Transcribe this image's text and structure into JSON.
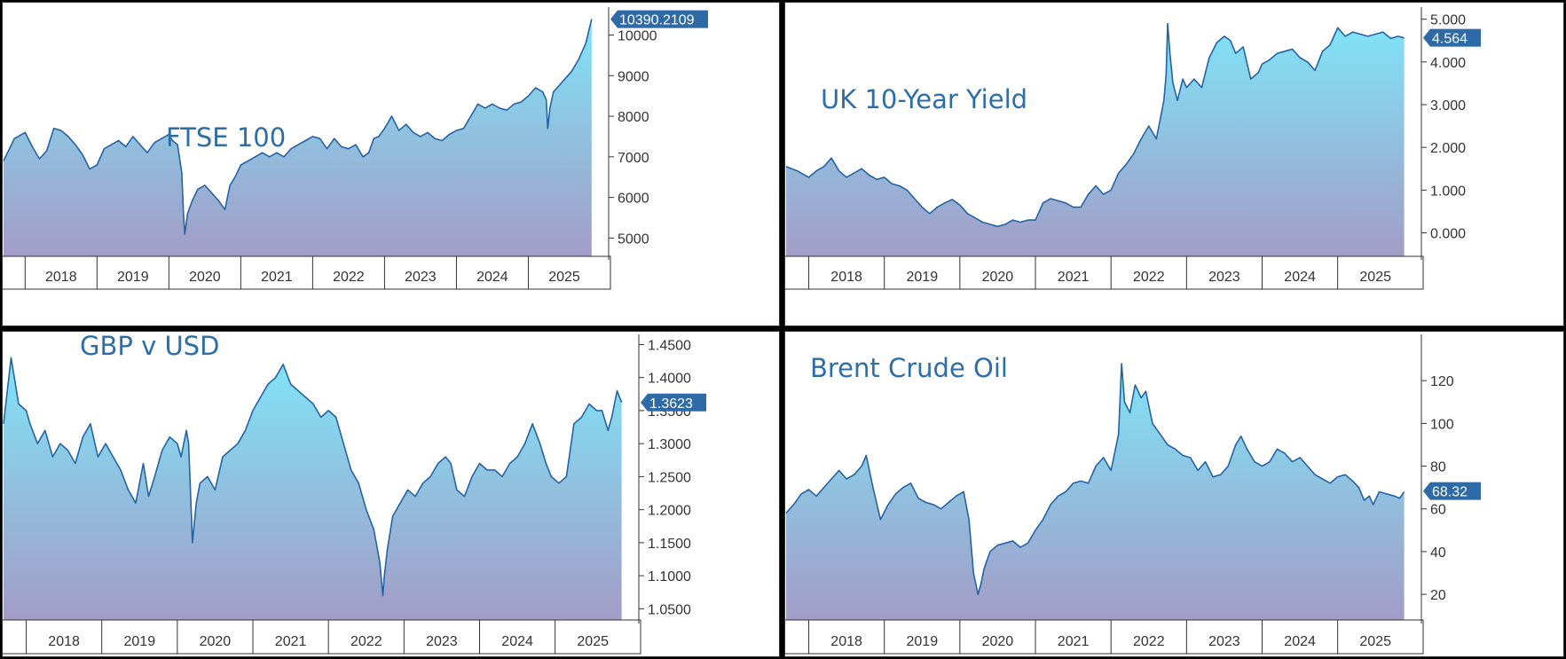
{
  "colors": {
    "line": "#2563a3",
    "fill_top": "#7fe4f7",
    "fill_bottom": "#a39cc7",
    "tag": "#2d6aa6",
    "axis": "#333333"
  },
  "chart_data": [
    {
      "type": "area",
      "title": "FTSE 100",
      "x_ticks": [
        "2018",
        "2019",
        "2020",
        "2021",
        "2022",
        "2023",
        "2024",
        "2025"
      ],
      "y_ticks": [
        "5000",
        "6000",
        "7000",
        "8000",
        "9000",
        "10000"
      ],
      "ylim": [
        4550,
        10600
      ],
      "last_value": 10390.2109,
      "last_label": "10390.2109",
      "x": [
        2017.7,
        2017.85,
        2018.0,
        2018.1,
        2018.2,
        2018.3,
        2018.4,
        2018.5,
        2018.6,
        2018.7,
        2018.8,
        2018.9,
        2019.0,
        2019.1,
        2019.2,
        2019.3,
        2019.4,
        2019.5,
        2019.6,
        2019.7,
        2019.8,
        2019.9,
        2020.0,
        2020.05,
        2020.12,
        2020.18,
        2020.2,
        2020.22,
        2020.26,
        2020.32,
        2020.4,
        2020.5,
        2020.6,
        2020.7,
        2020.78,
        2020.85,
        2020.92,
        2021.0,
        2021.1,
        2021.2,
        2021.3,
        2021.4,
        2021.5,
        2021.6,
        2021.7,
        2021.8,
        2021.9,
        2022.0,
        2022.1,
        2022.2,
        2022.3,
        2022.4,
        2022.5,
        2022.6,
        2022.7,
        2022.78,
        2022.85,
        2022.92,
        2023.0,
        2023.1,
        2023.2,
        2023.3,
        2023.4,
        2023.5,
        2023.6,
        2023.7,
        2023.8,
        2023.9,
        2024.0,
        2024.1,
        2024.2,
        2024.3,
        2024.4,
        2024.5,
        2024.6,
        2024.7,
        2024.8,
        2024.9,
        2025.0,
        2025.1,
        2025.2,
        2025.25,
        2025.27,
        2025.3,
        2025.35,
        2025.4,
        2025.5,
        2025.6,
        2025.7,
        2025.8,
        2025.88
      ],
      "y": [
        6900,
        7450,
        7600,
        7250,
        6950,
        7150,
        7700,
        7650,
        7500,
        7300,
        7050,
        6700,
        6800,
        7200,
        7300,
        7400,
        7250,
        7500,
        7300,
        7100,
        7350,
        7450,
        7550,
        7400,
        7300,
        6600,
        5700,
        5100,
        5600,
        5900,
        6200,
        6300,
        6100,
        5900,
        5700,
        6300,
        6500,
        6800,
        6900,
        7000,
        7100,
        7000,
        7100,
        7000,
        7200,
        7300,
        7400,
        7500,
        7450,
        7200,
        7450,
        7250,
        7200,
        7300,
        7000,
        7100,
        7450,
        7500,
        7700,
        8000,
        7650,
        7800,
        7600,
        7500,
        7600,
        7450,
        7400,
        7550,
        7650,
        7700,
        8000,
        8300,
        8200,
        8300,
        8200,
        8150,
        8300,
        8350,
        8500,
        8700,
        8600,
        8400,
        7700,
        8200,
        8600,
        8700,
        8900,
        9100,
        9400,
        9800,
        10390
      ]
    },
    {
      "type": "area",
      "title": "UK 10-Year Yield",
      "x_ticks": [
        "2018",
        "2019",
        "2020",
        "2021",
        "2022",
        "2023",
        "2024",
        "2025"
      ],
      "y_ticks": [
        "0.000",
        "1.000",
        "2.000",
        "3.000",
        "4.000",
        "5.000"
      ],
      "ylim": [
        -0.55,
        5.2
      ],
      "last_value": 4.564,
      "last_label": "4.564",
      "x": [
        2017.7,
        2017.85,
        2018.0,
        2018.1,
        2018.2,
        2018.3,
        2018.4,
        2018.5,
        2018.6,
        2018.7,
        2018.8,
        2018.9,
        2019.0,
        2019.1,
        2019.2,
        2019.3,
        2019.4,
        2019.5,
        2019.6,
        2019.7,
        2019.8,
        2019.9,
        2020.0,
        2020.1,
        2020.2,
        2020.3,
        2020.4,
        2020.5,
        2020.6,
        2020.7,
        2020.8,
        2020.9,
        2021.0,
        2021.1,
        2021.2,
        2021.3,
        2021.4,
        2021.5,
        2021.6,
        2021.7,
        2021.8,
        2021.9,
        2022.0,
        2022.1,
        2022.2,
        2022.3,
        2022.4,
        2022.5,
        2022.6,
        2022.7,
        2022.73,
        2022.75,
        2022.78,
        2022.82,
        2022.88,
        2022.95,
        2023.0,
        2023.1,
        2023.2,
        2023.3,
        2023.4,
        2023.5,
        2023.58,
        2023.65,
        2023.75,
        2023.85,
        2023.95,
        2024.0,
        2024.1,
        2024.2,
        2024.3,
        2024.4,
        2024.5,
        2024.6,
        2024.7,
        2024.8,
        2024.9,
        2025.0,
        2025.1,
        2025.2,
        2025.3,
        2025.4,
        2025.5,
        2025.6,
        2025.7,
        2025.8,
        2025.88
      ],
      "y": [
        1.55,
        1.45,
        1.3,
        1.45,
        1.55,
        1.75,
        1.45,
        1.3,
        1.4,
        1.5,
        1.35,
        1.25,
        1.3,
        1.15,
        1.1,
        1.0,
        0.8,
        0.6,
        0.45,
        0.6,
        0.7,
        0.78,
        0.65,
        0.45,
        0.35,
        0.25,
        0.2,
        0.15,
        0.2,
        0.3,
        0.25,
        0.3,
        0.3,
        0.7,
        0.8,
        0.75,
        0.7,
        0.6,
        0.6,
        0.9,
        1.1,
        0.9,
        1.0,
        1.4,
        1.6,
        1.85,
        2.2,
        2.5,
        2.2,
        3.1,
        3.7,
        4.9,
        4.2,
        3.5,
        3.1,
        3.6,
        3.4,
        3.6,
        3.4,
        4.1,
        4.45,
        4.6,
        4.5,
        4.2,
        4.35,
        3.6,
        3.75,
        3.95,
        4.05,
        4.2,
        4.25,
        4.3,
        4.1,
        4.0,
        3.8,
        4.25,
        4.4,
        4.8,
        4.6,
        4.7,
        4.65,
        4.6,
        4.65,
        4.7,
        4.55,
        4.6,
        4.56
      ]
    },
    {
      "type": "area",
      "title": "GBP v USD",
      "x_ticks": [
        "2018",
        "2019",
        "2020",
        "2021",
        "2022",
        "2023",
        "2024",
        "2025"
      ],
      "y_ticks": [
        "1.0500",
        "1.1000",
        "1.1500",
        "1.2000",
        "1.2500",
        "1.3000",
        "1.3500",
        "1.4000",
        "1.4500"
      ],
      "ylim": [
        1.033,
        1.46
      ],
      "last_value": 1.3623,
      "last_label": "1.3623",
      "x": [
        2017.7,
        2017.8,
        2017.9,
        2018.0,
        2018.05,
        2018.15,
        2018.25,
        2018.35,
        2018.45,
        2018.55,
        2018.65,
        2018.75,
        2018.85,
        2018.95,
        2019.05,
        2019.15,
        2019.25,
        2019.35,
        2019.45,
        2019.55,
        2019.62,
        2019.7,
        2019.8,
        2019.9,
        2020.0,
        2020.05,
        2020.12,
        2020.15,
        2020.2,
        2020.25,
        2020.3,
        2020.4,
        2020.5,
        2020.6,
        2020.7,
        2020.8,
        2020.9,
        2021.0,
        2021.1,
        2021.2,
        2021.3,
        2021.4,
        2021.5,
        2021.6,
        2021.7,
        2021.8,
        2021.9,
        2022.0,
        2022.1,
        2022.2,
        2022.3,
        2022.4,
        2022.5,
        2022.6,
        2022.68,
        2022.72,
        2022.74,
        2022.78,
        2022.85,
        2022.95,
        2023.05,
        2023.15,
        2023.25,
        2023.35,
        2023.45,
        2023.55,
        2023.62,
        2023.7,
        2023.8,
        2023.9,
        2024.0,
        2024.1,
        2024.2,
        2024.3,
        2024.4,
        2024.5,
        2024.6,
        2024.7,
        2024.8,
        2024.88,
        2024.95,
        2025.05,
        2025.15,
        2025.25,
        2025.35,
        2025.45,
        2025.55,
        2025.62,
        2025.7,
        2025.75,
        2025.82,
        2025.88
      ],
      "y": [
        1.33,
        1.43,
        1.36,
        1.35,
        1.33,
        1.3,
        1.32,
        1.28,
        1.3,
        1.29,
        1.27,
        1.31,
        1.33,
        1.28,
        1.3,
        1.28,
        1.26,
        1.23,
        1.21,
        1.27,
        1.22,
        1.25,
        1.29,
        1.31,
        1.3,
        1.28,
        1.32,
        1.3,
        1.15,
        1.21,
        1.24,
        1.25,
        1.23,
        1.28,
        1.29,
        1.3,
        1.32,
        1.35,
        1.37,
        1.39,
        1.4,
        1.42,
        1.39,
        1.38,
        1.37,
        1.36,
        1.34,
        1.35,
        1.34,
        1.3,
        1.26,
        1.24,
        1.2,
        1.17,
        1.12,
        1.07,
        1.1,
        1.14,
        1.19,
        1.21,
        1.23,
        1.22,
        1.24,
        1.25,
        1.27,
        1.28,
        1.27,
        1.23,
        1.22,
        1.25,
        1.27,
        1.26,
        1.26,
        1.25,
        1.27,
        1.28,
        1.3,
        1.33,
        1.3,
        1.27,
        1.25,
        1.24,
        1.25,
        1.33,
        1.34,
        1.36,
        1.35,
        1.35,
        1.32,
        1.34,
        1.38,
        1.3623
      ]
    },
    {
      "type": "area",
      "title": "Brent Crude Oil",
      "x_ticks": [
        "2018",
        "2019",
        "2020",
        "2021",
        "2022",
        "2023",
        "2024",
        "2025"
      ],
      "y_ticks": [
        "20",
        "40",
        "60",
        "80",
        "100",
        "120"
      ],
      "ylim": [
        8,
        140
      ],
      "last_value": 68.32,
      "last_label": "68.32",
      "x": [
        2017.7,
        2017.8,
        2017.9,
        2018.0,
        2018.1,
        2018.2,
        2018.3,
        2018.4,
        2018.5,
        2018.6,
        2018.7,
        2018.76,
        2018.85,
        2018.95,
        2019.05,
        2019.15,
        2019.25,
        2019.35,
        2019.45,
        2019.55,
        2019.65,
        2019.75,
        2019.85,
        2019.95,
        2020.05,
        2020.12,
        2020.18,
        2020.24,
        2020.28,
        2020.32,
        2020.4,
        2020.5,
        2020.6,
        2020.7,
        2020.8,
        2020.9,
        2021.0,
        2021.1,
        2021.2,
        2021.3,
        2021.4,
        2021.5,
        2021.6,
        2021.7,
        2021.8,
        2021.9,
        2022.0,
        2022.1,
        2022.14,
        2022.18,
        2022.25,
        2022.32,
        2022.4,
        2022.46,
        2022.55,
        2022.65,
        2022.75,
        2022.85,
        2022.95,
        2023.05,
        2023.15,
        2023.25,
        2023.35,
        2023.45,
        2023.55,
        2023.65,
        2023.72,
        2023.8,
        2023.9,
        2024.0,
        2024.1,
        2024.2,
        2024.3,
        2024.4,
        2024.5,
        2024.6,
        2024.7,
        2024.8,
        2024.9,
        2025.0,
        2025.1,
        2025.2,
        2025.28,
        2025.35,
        2025.42,
        2025.47,
        2025.55,
        2025.65,
        2025.75,
        2025.82,
        2025.88
      ],
      "y": [
        58,
        62,
        67,
        69,
        66,
        70,
        74,
        78,
        74,
        76,
        80,
        85,
        70,
        55,
        62,
        67,
        70,
        72,
        65,
        63,
        62,
        60,
        63,
        66,
        68,
        55,
        30,
        20,
        25,
        32,
        40,
        43,
        44,
        45,
        42,
        44,
        50,
        55,
        62,
        66,
        68,
        72,
        73,
        72,
        80,
        84,
        78,
        95,
        128,
        110,
        105,
        118,
        112,
        115,
        100,
        95,
        90,
        88,
        85,
        84,
        78,
        82,
        75,
        76,
        80,
        90,
        94,
        88,
        82,
        80,
        82,
        88,
        86,
        82,
        84,
        80,
        76,
        74,
        72,
        75,
        76,
        73,
        70,
        64,
        66,
        62,
        68,
        67,
        66,
        65,
        68
      ]
    }
  ]
}
